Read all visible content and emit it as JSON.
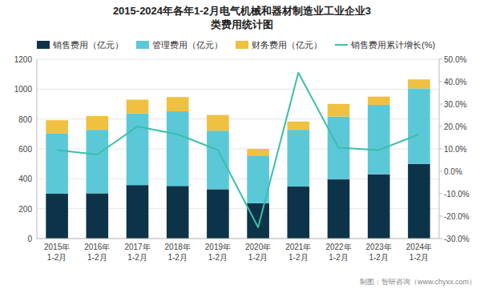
{
  "chart_data": {
    "type": "bar",
    "title": "2015-2024年各年1-2月电气机械和器材制造业工业企业3\n类费用统计图",
    "categories": [
      "2015年\n1-2月",
      "2016年\n1-2月",
      "2017年\n1-2月",
      "2018年\n1-2月",
      "2019年\n1-2月",
      "2020年\n1-2月",
      "2021年\n1-2月",
      "2022年\n1-2月",
      "2023年\n1-2月",
      "2024年\n1-2月"
    ],
    "series": [
      {
        "name": "销售费用（亿元）",
        "color": "#0d3349",
        "values": [
          300,
          303,
          358,
          352,
          330,
          237,
          348,
          396,
          430,
          500
        ]
      },
      {
        "name": "管理费用（亿元）",
        "color": "#5bc8d8",
        "values": [
          405,
          425,
          480,
          500,
          392,
          315,
          380,
          420,
          465,
          505
        ]
      },
      {
        "name": "财务费用（亿元）",
        "color": "#f0c040",
        "values": [
          87,
          92,
          92,
          95,
          105,
          48,
          55,
          85,
          55,
          60
        ]
      },
      {
        "name": "销售费用累计增长(%)",
        "type": "line",
        "axis": "y2",
        "color": "#3abfa8",
        "values": [
          9.5,
          7.5,
          20.0,
          16.5,
          9.5,
          -25.0,
          44.0,
          10.5,
          9.5,
          16.5
        ]
      }
    ],
    "stacked": true,
    "ylim": [
      0,
      1200
    ],
    "yticks": [
      0,
      200,
      400,
      600,
      800,
      1000,
      1200
    ],
    "y2lim": [
      -30.0,
      50.0
    ],
    "y2ticks": [
      {
        "value": -30.0,
        "label": "-30.0%"
      },
      {
        "value": -20.0,
        "label": "-20.0%"
      },
      {
        "value": -10.0,
        "label": "-10.0%"
      },
      {
        "value": 0.0,
        "label": "0.0%"
      },
      {
        "value": 10.0,
        "label": "10.0%"
      },
      {
        "value": 20.0,
        "label": "20.0%"
      },
      {
        "value": 30.0,
        "label": "30.0%"
      },
      {
        "value": 40.0,
        "label": "40.0%"
      },
      {
        "value": 50.0,
        "label": "50.0%"
      }
    ],
    "grid": true,
    "legend": "top",
    "annotations": [
      "制图：智研咨询（www.chyxx.com）"
    ]
  }
}
